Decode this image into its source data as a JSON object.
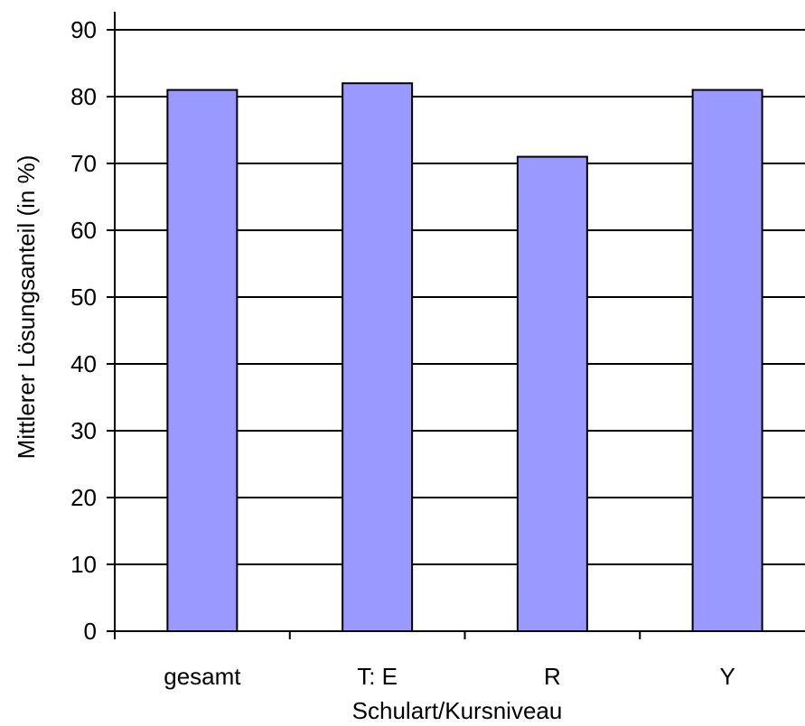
{
  "chart_data": {
    "type": "bar",
    "title": "",
    "xlabel": "Schulart/Kursniveau",
    "ylabel": "Mittlerer Lösungsanteil (in %)",
    "categories": [
      "gesamt",
      "T: E",
      "R",
      "Y"
    ],
    "values": [
      81,
      82,
      71,
      81
    ],
    "ylim": [
      0,
      90
    ],
    "yticks": [
      0,
      10,
      20,
      30,
      40,
      50,
      60,
      70,
      80,
      90
    ],
    "ytick_labels": [
      "0",
      "10",
      "20",
      "30",
      "40",
      "50",
      "60",
      "70",
      "80",
      "90"
    ],
    "grid": true,
    "legend": "none",
    "bar_color": "#9999ff",
    "bar_edge_color": "#000000"
  }
}
